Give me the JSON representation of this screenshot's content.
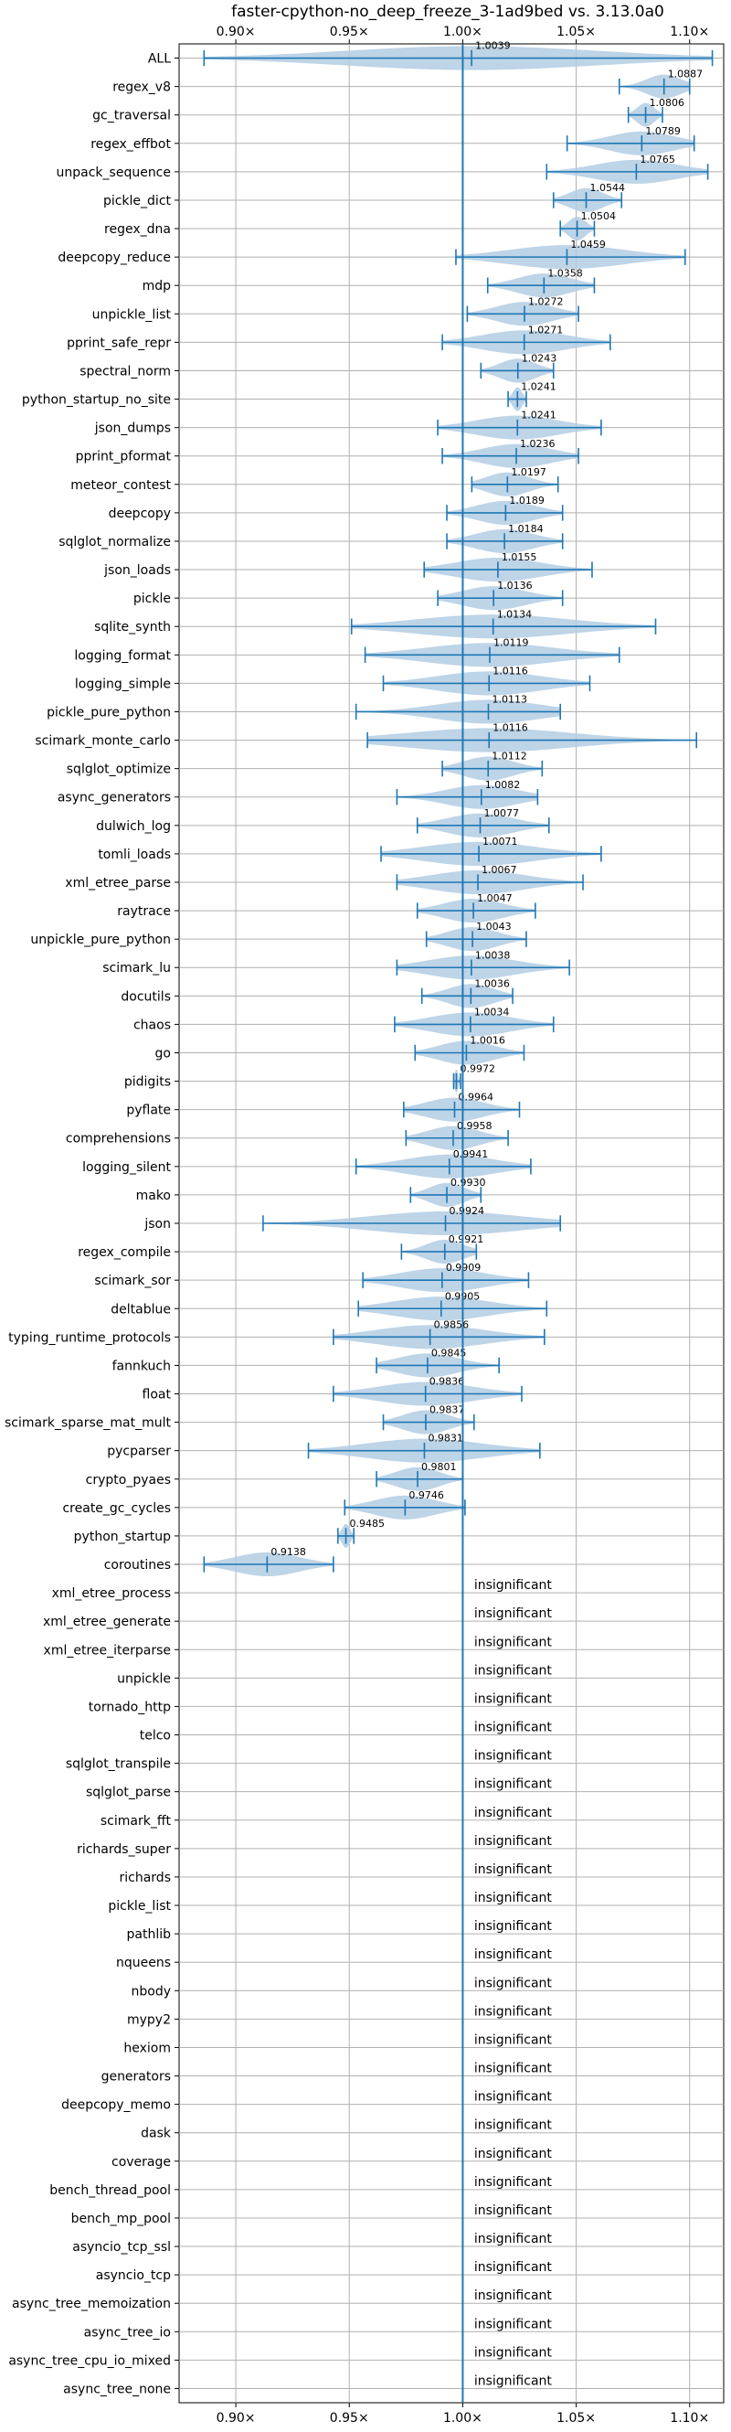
{
  "chart_data": {
    "type": "violin",
    "title": "faster-cpython-no_deep_freeze_3-1ad9bed vs. 3.13.0a0",
    "xlabel": "",
    "ylabel": "",
    "xlim": [
      0.875,
      1.115
    ],
    "x_ticks": [
      0.9,
      0.95,
      1.0,
      1.05,
      1.1
    ],
    "x_tick_labels": [
      "0.90×",
      "0.95×",
      "1.00×",
      "1.05×",
      "1.10×"
    ],
    "reference_line": 1.0,
    "grid": true,
    "insignificant_label": "insignificant",
    "colors": {
      "violin": "#b3cde3",
      "line": "#1f77b4",
      "grid": "#b0b0b0"
    },
    "benchmarks": [
      {
        "name": "ALL",
        "value": 1.0039,
        "label": "1.0039",
        "min": 0.886,
        "max": 1.11
      },
      {
        "name": "regex_v8",
        "value": 1.0887,
        "label": "1.0887",
        "min": 1.069,
        "max": 1.1
      },
      {
        "name": "gc_traversal",
        "value": 1.0806,
        "label": "1.0806",
        "min": 1.073,
        "max": 1.088
      },
      {
        "name": "regex_effbot",
        "value": 1.0789,
        "label": "1.0789",
        "min": 1.046,
        "max": 1.102
      },
      {
        "name": "unpack_sequence",
        "value": 1.0765,
        "label": "1.0765",
        "min": 1.037,
        "max": 1.108
      },
      {
        "name": "pickle_dict",
        "value": 1.0544,
        "label": "1.0544",
        "min": 1.04,
        "max": 1.07
      },
      {
        "name": "regex_dna",
        "value": 1.0504,
        "label": "1.0504",
        "min": 1.043,
        "max": 1.058
      },
      {
        "name": "deepcopy_reduce",
        "value": 1.0459,
        "label": "1.0459",
        "min": 0.997,
        "max": 1.098
      },
      {
        "name": "mdp",
        "value": 1.0358,
        "label": "1.0358",
        "min": 1.011,
        "max": 1.058
      },
      {
        "name": "unpickle_list",
        "value": 1.0272,
        "label": "1.0272",
        "min": 1.002,
        "max": 1.051
      },
      {
        "name": "pprint_safe_repr",
        "value": 1.0271,
        "label": "1.0271",
        "min": 0.991,
        "max": 1.065
      },
      {
        "name": "spectral_norm",
        "value": 1.0243,
        "label": "1.0243",
        "min": 1.008,
        "max": 1.04
      },
      {
        "name": "python_startup_no_site",
        "value": 1.0241,
        "label": "1.0241",
        "min": 1.02,
        "max": 1.028
      },
      {
        "name": "json_dumps",
        "value": 1.0241,
        "label": "1.0241",
        "min": 0.989,
        "max": 1.061
      },
      {
        "name": "pprint_pformat",
        "value": 1.0236,
        "label": "1.0236",
        "min": 0.991,
        "max": 1.051
      },
      {
        "name": "meteor_contest",
        "value": 1.0197,
        "label": "1.0197",
        "min": 1.004,
        "max": 1.042
      },
      {
        "name": "deepcopy",
        "value": 1.0189,
        "label": "1.0189",
        "min": 0.993,
        "max": 1.044
      },
      {
        "name": "sqlglot_normalize",
        "value": 1.0184,
        "label": "1.0184",
        "min": 0.993,
        "max": 1.044
      },
      {
        "name": "json_loads",
        "value": 1.0155,
        "label": "1.0155",
        "min": 0.983,
        "max": 1.057
      },
      {
        "name": "pickle",
        "value": 1.0136,
        "label": "1.0136",
        "min": 0.989,
        "max": 1.044
      },
      {
        "name": "sqlite_synth",
        "value": 1.0134,
        "label": "1.0134",
        "min": 0.951,
        "max": 1.085
      },
      {
        "name": "logging_format",
        "value": 1.0119,
        "label": "1.0119",
        "min": 0.957,
        "max": 1.069
      },
      {
        "name": "logging_simple",
        "value": 1.0116,
        "label": "1.0116",
        "min": 0.965,
        "max": 1.056
      },
      {
        "name": "pickle_pure_python",
        "value": 1.0113,
        "label": "1.0113",
        "min": 0.953,
        "max": 1.043
      },
      {
        "name": "scimark_monte_carlo",
        "value": 1.0116,
        "label": "1.0116",
        "min": 0.958,
        "max": 1.103
      },
      {
        "name": "sqlglot_optimize",
        "value": 1.0112,
        "label": "1.0112",
        "min": 0.991,
        "max": 1.035
      },
      {
        "name": "async_generators",
        "value": 1.0082,
        "label": "1.0082",
        "min": 0.971,
        "max": 1.033
      },
      {
        "name": "dulwich_log",
        "value": 1.0077,
        "label": "1.0077",
        "min": 0.98,
        "max": 1.038
      },
      {
        "name": "tomli_loads",
        "value": 1.0071,
        "label": "1.0071",
        "min": 0.964,
        "max": 1.061
      },
      {
        "name": "xml_etree_parse",
        "value": 1.0067,
        "label": "1.0067",
        "min": 0.971,
        "max": 1.053
      },
      {
        "name": "raytrace",
        "value": 1.0047,
        "label": "1.0047",
        "min": 0.98,
        "max": 1.032
      },
      {
        "name": "unpickle_pure_python",
        "value": 1.0043,
        "label": "1.0043",
        "min": 0.984,
        "max": 1.028
      },
      {
        "name": "scimark_lu",
        "value": 1.0038,
        "label": "1.0038",
        "min": 0.971,
        "max": 1.047
      },
      {
        "name": "docutils",
        "value": 1.0036,
        "label": "1.0036",
        "min": 0.982,
        "max": 1.022
      },
      {
        "name": "chaos",
        "value": 1.0034,
        "label": "1.0034",
        "min": 0.97,
        "max": 1.04
      },
      {
        "name": "go",
        "value": 1.0016,
        "label": "1.0016",
        "min": 0.979,
        "max": 1.027
      },
      {
        "name": "pidigits",
        "value": 0.9972,
        "label": "0.9972",
        "min": 0.996,
        "max": 0.999
      },
      {
        "name": "pyflate",
        "value": 0.9964,
        "label": "0.9964",
        "min": 0.974,
        "max": 1.025
      },
      {
        "name": "comprehensions",
        "value": 0.9958,
        "label": "0.9958",
        "min": 0.975,
        "max": 1.02
      },
      {
        "name": "logging_silent",
        "value": 0.9941,
        "label": "0.9941",
        "min": 0.953,
        "max": 1.03
      },
      {
        "name": "mako",
        "value": 0.993,
        "label": "0.9930",
        "min": 0.977,
        "max": 1.008
      },
      {
        "name": "json",
        "value": 0.9924,
        "label": "0.9924",
        "min": 0.912,
        "max": 1.043
      },
      {
        "name": "regex_compile",
        "value": 0.9921,
        "label": "0.9921",
        "min": 0.973,
        "max": 1.006
      },
      {
        "name": "scimark_sor",
        "value": 0.9909,
        "label": "0.9909",
        "min": 0.956,
        "max": 1.029
      },
      {
        "name": "deltablue",
        "value": 0.9905,
        "label": "0.9905",
        "min": 0.954,
        "max": 1.037
      },
      {
        "name": "typing_runtime_protocols",
        "value": 0.9856,
        "label": "0.9856",
        "min": 0.943,
        "max": 1.036
      },
      {
        "name": "fannkuch",
        "value": 0.9845,
        "label": "0.9845",
        "min": 0.962,
        "max": 1.016
      },
      {
        "name": "float",
        "value": 0.9836,
        "label": "0.9836",
        "min": 0.943,
        "max": 1.026
      },
      {
        "name": "scimark_sparse_mat_mult",
        "value": 0.9837,
        "label": "0.9837",
        "min": 0.965,
        "max": 1.005
      },
      {
        "name": "pycparser",
        "value": 0.9831,
        "label": "0.9831",
        "min": 0.932,
        "max": 1.034
      },
      {
        "name": "crypto_pyaes",
        "value": 0.9801,
        "label": "0.9801",
        "min": 0.962,
        "max": 1.0
      },
      {
        "name": "create_gc_cycles",
        "value": 0.9746,
        "label": "0.9746",
        "min": 0.948,
        "max": 1.001
      },
      {
        "name": "python_startup",
        "value": 0.9485,
        "label": "0.9485",
        "min": 0.945,
        "max": 0.952
      },
      {
        "name": "coroutines",
        "value": 0.9138,
        "label": "0.9138",
        "min": 0.886,
        "max": 0.943
      },
      {
        "name": "xml_etree_process",
        "value": null
      },
      {
        "name": "xml_etree_generate",
        "value": null
      },
      {
        "name": "xml_etree_iterparse",
        "value": null
      },
      {
        "name": "unpickle",
        "value": null
      },
      {
        "name": "tornado_http",
        "value": null
      },
      {
        "name": "telco",
        "value": null
      },
      {
        "name": "sqlglot_transpile",
        "value": null
      },
      {
        "name": "sqlglot_parse",
        "value": null
      },
      {
        "name": "scimark_fft",
        "value": null
      },
      {
        "name": "richards_super",
        "value": null
      },
      {
        "name": "richards",
        "value": null
      },
      {
        "name": "pickle_list",
        "value": null
      },
      {
        "name": "pathlib",
        "value": null
      },
      {
        "name": "nqueens",
        "value": null
      },
      {
        "name": "nbody",
        "value": null
      },
      {
        "name": "mypy2",
        "value": null
      },
      {
        "name": "hexiom",
        "value": null
      },
      {
        "name": "generators",
        "value": null
      },
      {
        "name": "deepcopy_memo",
        "value": null
      },
      {
        "name": "dask",
        "value": null
      },
      {
        "name": "coverage",
        "value": null
      },
      {
        "name": "bench_thread_pool",
        "value": null
      },
      {
        "name": "bench_mp_pool",
        "value": null
      },
      {
        "name": "asyncio_tcp_ssl",
        "value": null
      },
      {
        "name": "asyncio_tcp",
        "value": null
      },
      {
        "name": "async_tree_memoization",
        "value": null
      },
      {
        "name": "async_tree_io",
        "value": null
      },
      {
        "name": "async_tree_cpu_io_mixed",
        "value": null
      },
      {
        "name": "async_tree_none",
        "value": null
      }
    ]
  }
}
